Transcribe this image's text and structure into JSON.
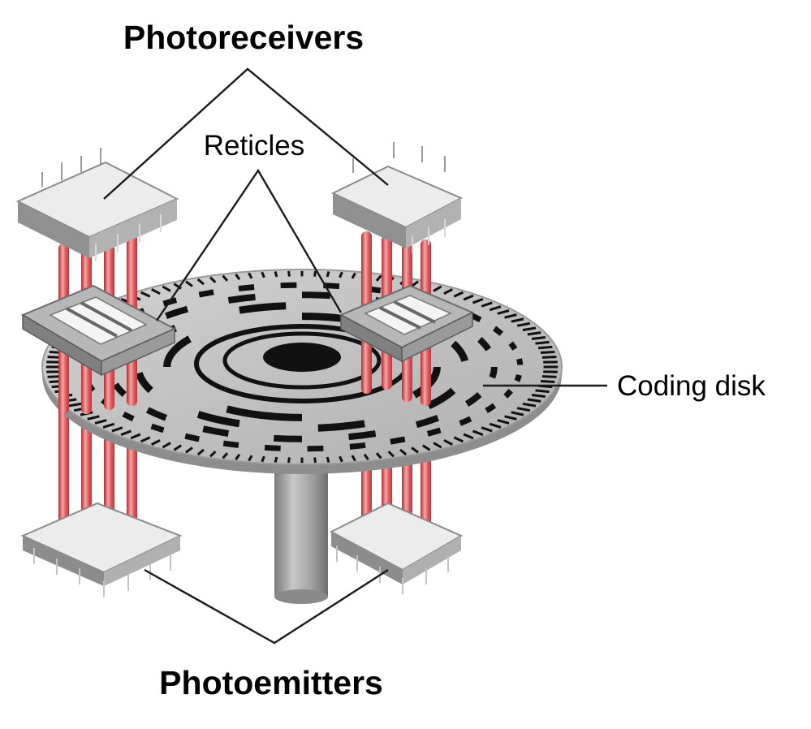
{
  "labels": {
    "photoreceivers": "Photoreceivers",
    "reticles": "Reticles",
    "coding_disk": "Coding disk",
    "photoemitters": "Photoemitters"
  },
  "colors": {
    "beam": "#e0585c",
    "beam_highlight": "#f6a6a6",
    "beam_shadow": "#a92e33",
    "chip_top": "#ededed",
    "chip_side": "#8f8f8f",
    "disk": "#c2c2c2",
    "disk_rim": "#9a9a9a",
    "slot": "#111111",
    "shaft": "#9c9c9c",
    "line": "#1a1a1a"
  }
}
